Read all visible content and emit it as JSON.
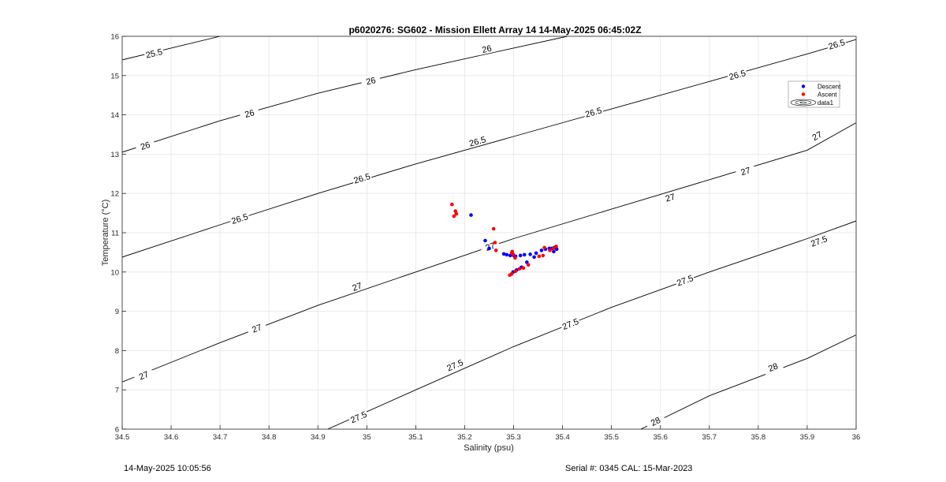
{
  "chart_data": {
    "type": "scatter",
    "title": "p6020276: SG602 - Mission Ellett Array 14 14-May-2025 06:45:02Z",
    "xlabel": "Salinity (psu)",
    "ylabel": "Temperature (°C)",
    "xlim": [
      34.5,
      36
    ],
    "ylim": [
      6,
      16
    ],
    "xticks": [
      34.5,
      34.6,
      34.7,
      34.8,
      34.9,
      35,
      35.1,
      35.2,
      35.3,
      35.4,
      35.5,
      35.6,
      35.7,
      35.8,
      35.9,
      36
    ],
    "xtick_labels": [
      "34.5",
      "34.6",
      "34.7",
      "34.8",
      "34.9",
      "35",
      "35.1",
      "35.2",
      "35.3",
      "35.4",
      "35.5",
      "35.6",
      "35.7",
      "35.8",
      "35.9",
      "36"
    ],
    "yticks": [
      6,
      7,
      8,
      9,
      10,
      11,
      12,
      13,
      14,
      15,
      16
    ],
    "ytick_labels": [
      "6",
      "7",
      "8",
      "9",
      "10",
      "11",
      "12",
      "13",
      "14",
      "15",
      "16"
    ],
    "grid": true,
    "legend_position": "top-right",
    "legend": [
      "Descent",
      "Ascent",
      "data1"
    ],
    "series": [
      {
        "name": "Descent",
        "color": "#0000ff",
        "points": [
          [
            35.213,
            11.45
          ],
          [
            35.242,
            10.8
          ],
          [
            35.25,
            10.6
          ],
          [
            35.28,
            10.46
          ],
          [
            35.286,
            10.44
          ],
          [
            35.293,
            10.42
          ],
          [
            35.3,
            10.42
          ],
          [
            35.304,
            10.4
          ],
          [
            35.314,
            10.42
          ],
          [
            35.322,
            10.44
          ],
          [
            35.334,
            10.45
          ],
          [
            35.346,
            10.48
          ],
          [
            35.342,
            10.38
          ],
          [
            35.357,
            10.55
          ],
          [
            35.365,
            10.58
          ],
          [
            35.373,
            10.6
          ],
          [
            35.378,
            10.6
          ],
          [
            35.383,
            10.62
          ],
          [
            35.388,
            10.58
          ],
          [
            35.382,
            10.52
          ],
          [
            35.327,
            10.25
          ],
          [
            35.316,
            10.12
          ],
          [
            35.306,
            10.05
          ],
          [
            35.299,
            10.0
          ]
        ]
      },
      {
        "name": "Ascent",
        "color": "#ff0000",
        "points": [
          [
            35.174,
            11.72
          ],
          [
            35.181,
            11.55
          ],
          [
            35.183,
            11.48
          ],
          [
            35.178,
            11.42
          ],
          [
            35.259,
            11.1
          ],
          [
            35.262,
            10.75
          ],
          [
            35.264,
            10.55
          ],
          [
            35.296,
            10.48
          ],
          [
            35.297,
            10.52
          ],
          [
            35.299,
            10.45
          ],
          [
            35.303,
            10.36
          ],
          [
            35.292,
            9.92
          ],
          [
            35.296,
            9.95
          ],
          [
            35.304,
            10.02
          ],
          [
            35.312,
            10.08
          ],
          [
            35.32,
            10.1
          ],
          [
            35.33,
            10.18
          ],
          [
            35.352,
            10.4
          ],
          [
            35.36,
            10.42
          ],
          [
            35.363,
            10.62
          ],
          [
            35.374,
            10.55
          ],
          [
            35.381,
            10.6
          ],
          [
            35.387,
            10.65
          ]
        ]
      }
    ],
    "contour_levels": [
      "25.5",
      "26",
      "26.5",
      "27",
      "27.5",
      "28"
    ],
    "contours": [
      {
        "level": "25.5",
        "points": [
          [
            34.5,
            15.4
          ],
          [
            34.7,
            16.0
          ]
        ],
        "labels": [
          [
            34.565,
            15.57
          ]
        ]
      },
      {
        "level": "26",
        "points": [
          [
            34.5,
            13.05
          ],
          [
            34.7,
            13.85
          ],
          [
            34.9,
            14.55
          ],
          [
            35.1,
            15.15
          ],
          [
            35.3,
            15.7
          ],
          [
            35.41,
            16.0
          ]
        ],
        "labels": [
          [
            34.547,
            13.22
          ],
          [
            34.76,
            14.04
          ],
          [
            35.008,
            14.87
          ],
          [
            35.245,
            15.68
          ]
        ]
      },
      {
        "level": "26.5",
        "points": [
          [
            34.5,
            10.38
          ],
          [
            34.7,
            11.2
          ],
          [
            34.9,
            12.0
          ],
          [
            35.1,
            12.75
          ],
          [
            35.3,
            13.45
          ],
          [
            35.5,
            14.15
          ],
          [
            35.7,
            14.85
          ],
          [
            35.9,
            15.55
          ],
          [
            36,
            15.92
          ]
        ],
        "labels": [
          [
            34.74,
            11.36
          ],
          [
            34.99,
            12.39
          ],
          [
            35.226,
            13.33
          ],
          [
            35.463,
            14.07
          ],
          [
            35.757,
            15.02
          ],
          [
            35.96,
            15.8
          ]
        ]
      },
      {
        "level": "27",
        "points": [
          [
            34.5,
            7.2
          ],
          [
            34.7,
            8.2
          ],
          [
            34.9,
            9.15
          ],
          [
            35.1,
            10.0
          ],
          [
            35.3,
            10.85
          ],
          [
            35.5,
            11.6
          ],
          [
            35.7,
            12.35
          ],
          [
            35.9,
            13.1
          ],
          [
            36,
            13.8
          ]
        ],
        "labels": [
          [
            34.544,
            7.37
          ],
          [
            34.775,
            8.57
          ],
          [
            34.98,
            9.63
          ],
          [
            35.252,
            10.65
          ],
          [
            35.62,
            11.9
          ],
          [
            35.774,
            12.57
          ],
          [
            35.92,
            13.47
          ]
        ]
      },
      {
        "level": "27.5",
        "points": [
          [
            34.92,
            6.0
          ],
          [
            35.1,
            7.0
          ],
          [
            35.3,
            8.1
          ],
          [
            35.5,
            9.1
          ],
          [
            35.7,
            10.0
          ],
          [
            35.9,
            10.85
          ],
          [
            36,
            11.3
          ]
        ],
        "labels": [
          [
            34.983,
            6.31
          ],
          [
            35.18,
            7.63
          ],
          [
            35.416,
            8.68
          ],
          [
            35.65,
            9.79
          ],
          [
            35.924,
            10.79
          ]
        ]
      },
      {
        "level": "28",
        "points": [
          [
            35.56,
            6.0
          ],
          [
            35.7,
            6.85
          ],
          [
            35.9,
            7.8
          ],
          [
            36,
            8.4
          ]
        ],
        "labels": [
          [
            35.59,
            6.2
          ],
          [
            35.83,
            7.58
          ]
        ]
      }
    ]
  },
  "footer": {
    "timestamp": "14-May-2025 10:05:56",
    "serial": "Serial #: 0345  CAL: 15-Mar-2023"
  }
}
